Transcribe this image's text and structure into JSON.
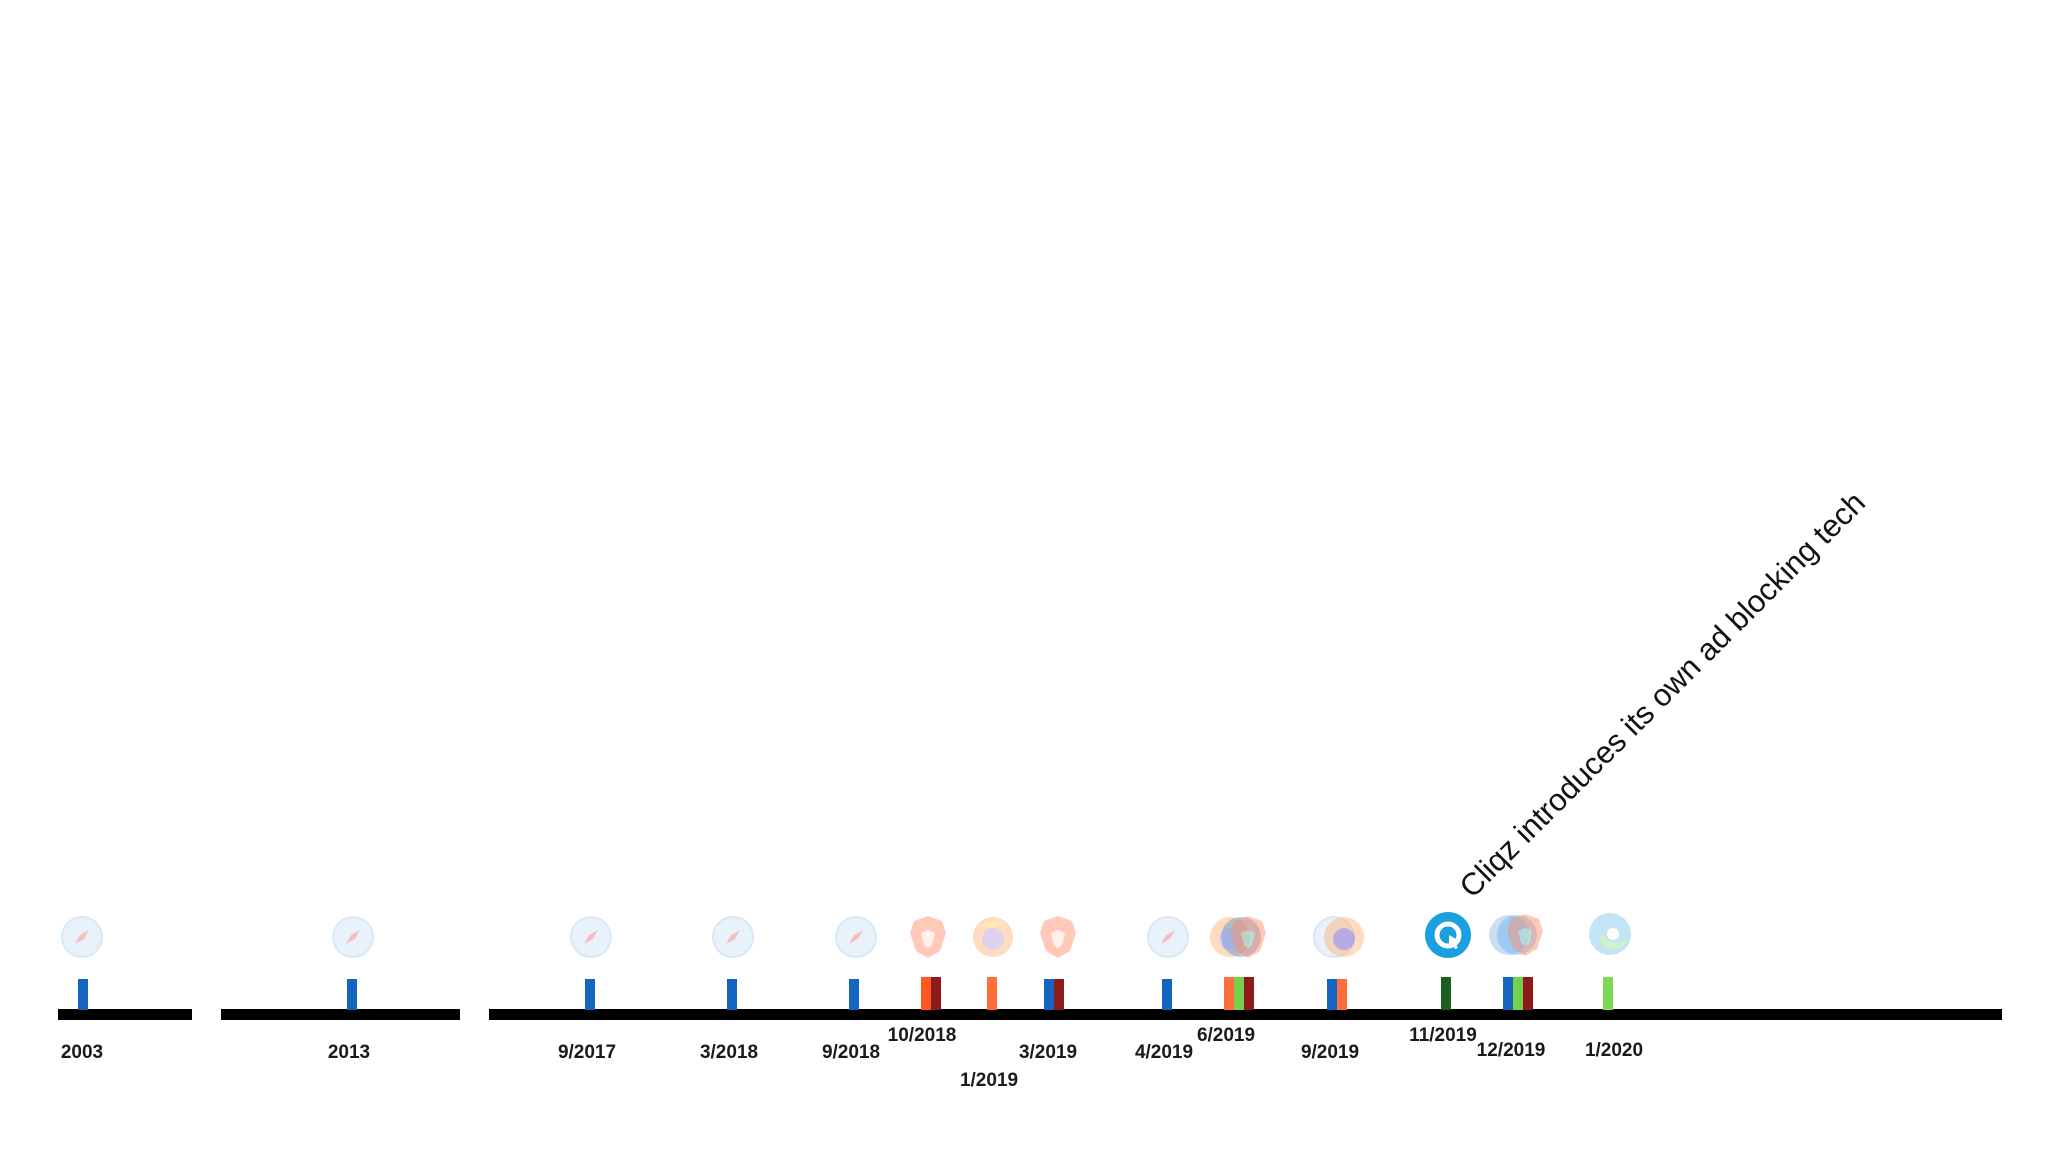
{
  "colors": {
    "safari": "#1565c0",
    "brave": "#ff5722",
    "brave_dark": "#8e1b1b",
    "firefox": "#ff6d3a",
    "cliqz_dark": "#1b5e20",
    "cliqz_green": "#76d04b",
    "edge": "#7ed957",
    "cliqz_blue": "#1a9fe0"
  },
  "timeline": {
    "dates": {
      "d2003": "2003",
      "d2013": "2013",
      "d2017_9": "9/2017",
      "d2018_3": "3/2018",
      "d2018_9": "9/2018",
      "d2018_10": "10/2018",
      "d2019_1": "1/2019",
      "d2019_3": "3/2019",
      "d2019_4": "4/2019",
      "d2019_6": "6/2019",
      "d2019_9": "9/2019",
      "d2019_11": "11/2019",
      "d2019_12": "12/2019",
      "d2020_1": "1/2020"
    }
  },
  "callout": {
    "text": "Cliqz introduces its own ad blocking tech"
  },
  "icons": [
    "safari-icon",
    "brave-icon",
    "firefox-icon",
    "cliqz-icon",
    "edge-icon"
  ]
}
